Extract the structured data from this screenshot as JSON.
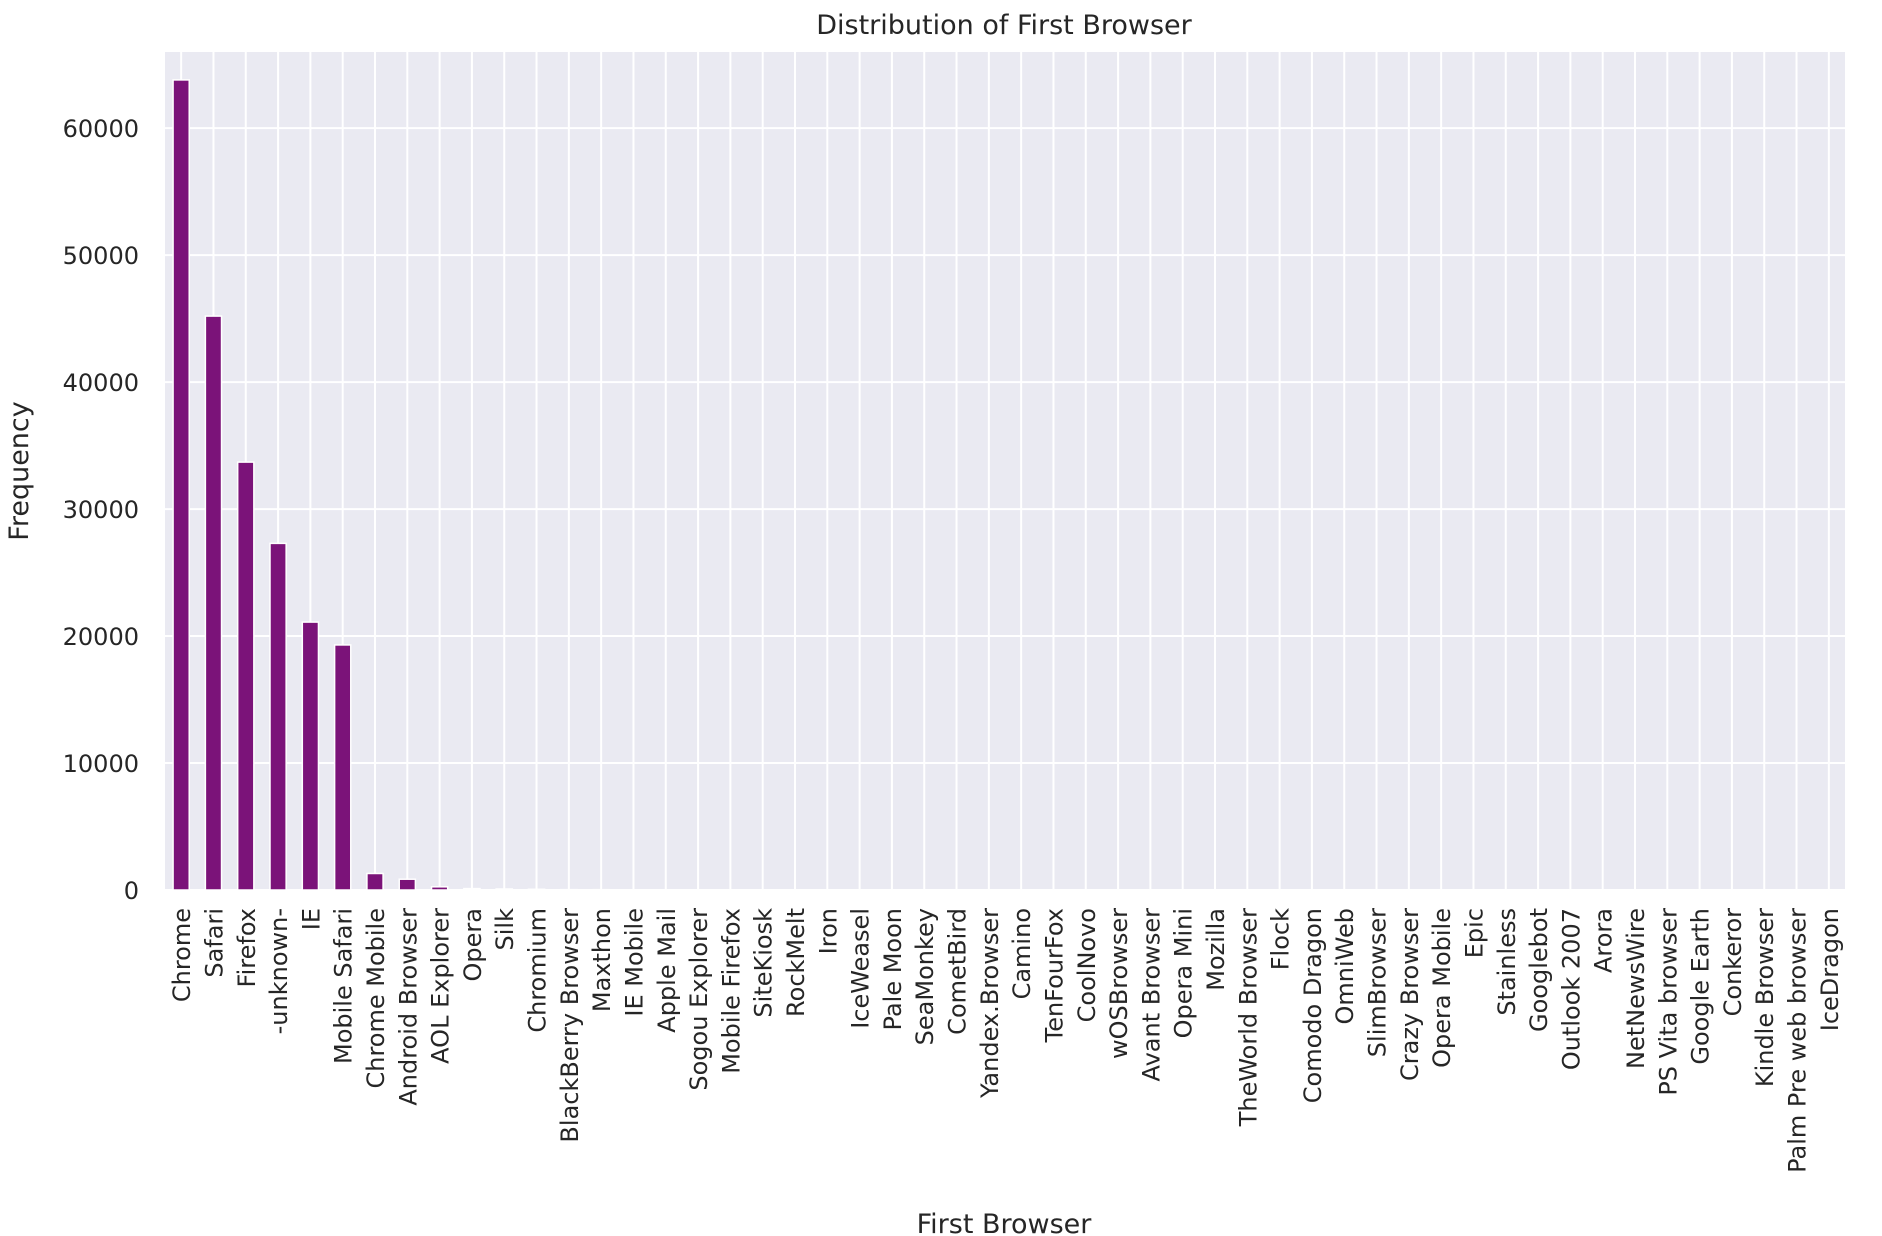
{
  "chart_data": {
    "type": "bar",
    "title": "Distribution of First Browser",
    "xlabel": "First Browser",
    "ylabel": "Frequency",
    "ylim": [
      0,
      66000
    ],
    "yticks": [
      0,
      10000,
      20000,
      30000,
      40000,
      50000,
      60000
    ],
    "grid": true,
    "bar_color": "#7b1379",
    "background_color": "#eaeaf2",
    "categories": [
      "Chrome",
      "Safari",
      "Firefox",
      "-unknown-",
      "IE",
      "Mobile Safari",
      "Chrome Mobile",
      "Android Browser",
      "AOL Explorer",
      "Opera",
      "Silk",
      "Chromium",
      "BlackBerry Browser",
      "Maxthon",
      "IE Mobile",
      "Apple Mail",
      "Sogou Explorer",
      "Mobile Firefox",
      "SiteKiosk",
      "RockMelt",
      "Iron",
      "IceWeasel",
      "Pale Moon",
      "SeaMonkey",
      "CometBird",
      "Yandex.Browser",
      "Camino",
      "TenFourFox",
      "CoolNovo",
      "wOSBrowser",
      "Avant Browser",
      "Opera Mini",
      "Mozilla",
      "TheWorld Browser",
      "Flock",
      "Comodo Dragon",
      "OmniWeb",
      "SlimBrowser",
      "Crazy Browser",
      "Opera Mobile",
      "Epic",
      "Stainless",
      "Googlebot",
      "Outlook 2007",
      "Arora",
      "NetNewsWire",
      "PS Vita browser",
      "Google Earth",
      "Conkeror",
      "Kindle Browser",
      "Palm Pre web browser",
      "IceDragon"
    ],
    "values": [
      63800,
      45200,
      33700,
      27300,
      21100,
      19300,
      1300,
      850,
      250,
      110,
      80,
      55,
      30,
      25,
      20,
      18,
      15,
      14,
      12,
      10,
      9,
      8,
      7,
      6,
      5,
      5,
      4,
      4,
      3,
      3,
      3,
      2,
      2,
      2,
      2,
      2,
      1,
      1,
      1,
      1,
      1,
      1,
      1,
      1,
      1,
      1,
      1,
      1,
      1,
      1,
      1,
      1
    ]
  }
}
